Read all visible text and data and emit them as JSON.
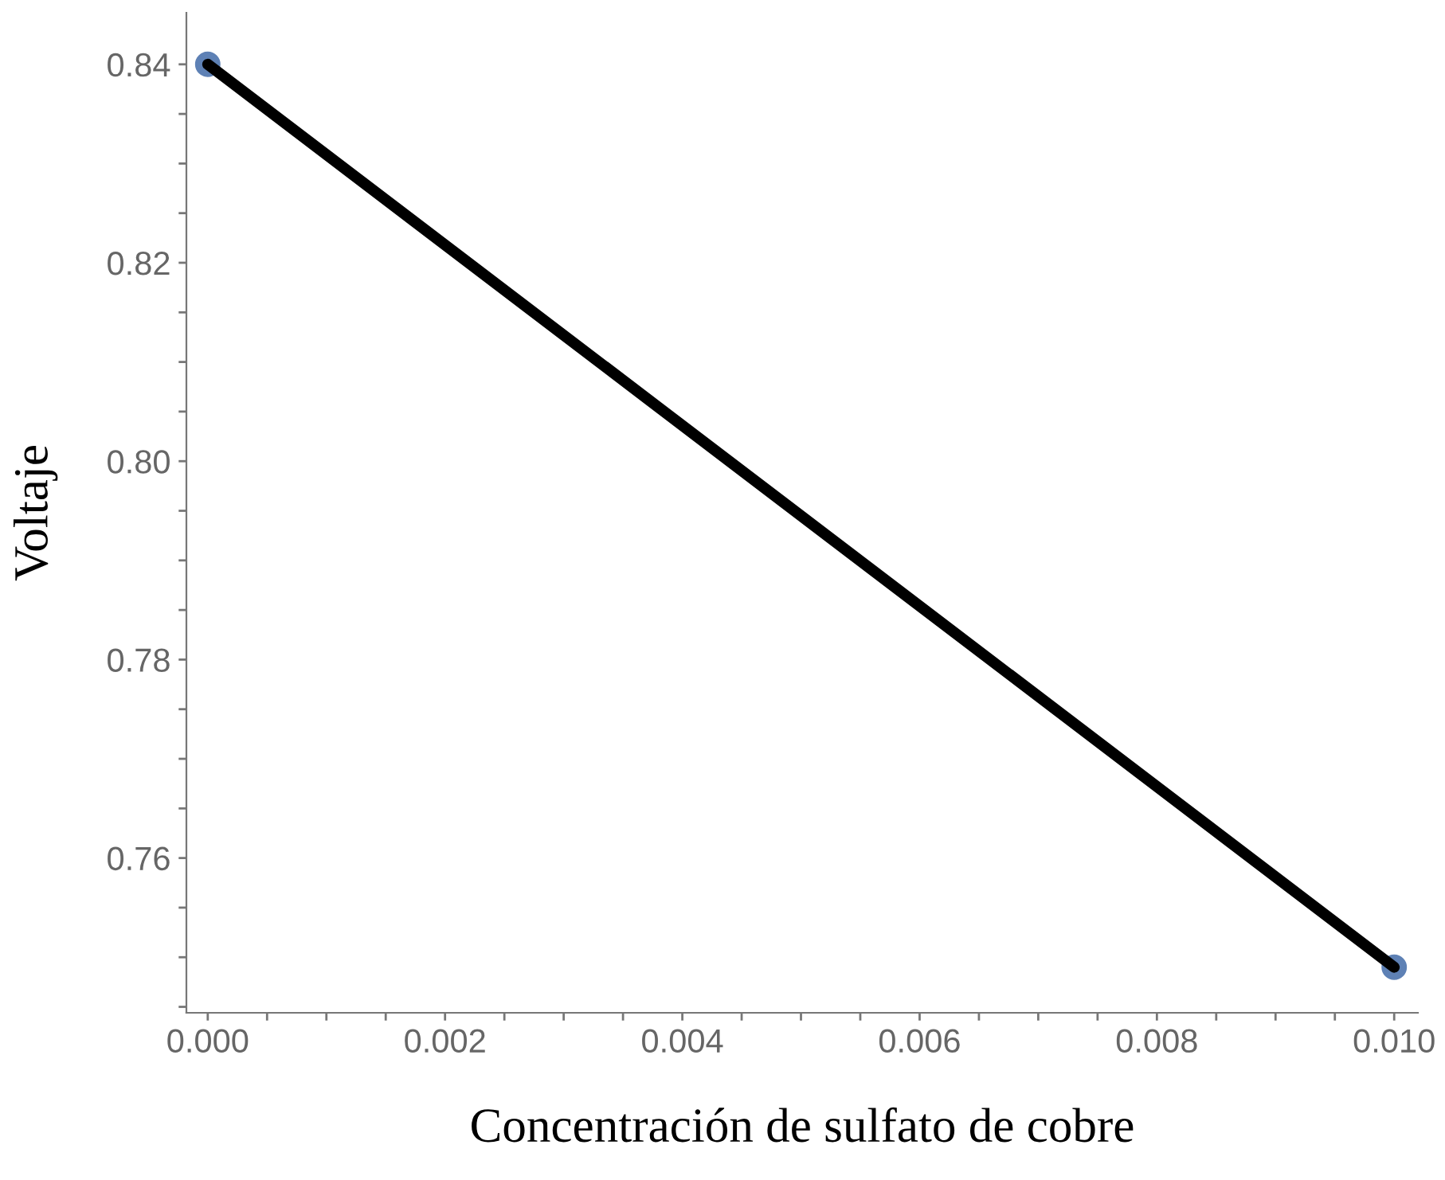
{
  "chart_data": {
    "type": "scatter",
    "xlabel": "Concentración de sulfato de cobre",
    "ylabel": "Voltaje",
    "x": [
      0,
      0.01
    ],
    "series": [
      {
        "color": "#5e81b5",
        "values": [
          0.84,
          0.749
        ],
        "marker": "circle"
      },
      {
        "type": "line",
        "color": "#000000",
        "values": [
          0.84,
          0.749
        ],
        "marker": "none",
        "line_style": "solid"
      }
    ],
    "xlim": [
      -0.00018,
      0.0102
    ],
    "ylim": [
      0.7444,
      0.8452
    ],
    "xticks": [
      {
        "value": 0,
        "label": "0.000"
      },
      {
        "value": 0.0005,
        "label": null
      },
      {
        "value": 0.001,
        "label": null
      },
      {
        "value": 0.0015,
        "label": null
      },
      {
        "value": 0.002,
        "label": "0.002"
      },
      {
        "value": 0.0025,
        "label": null
      },
      {
        "value": 0.003,
        "label": null
      },
      {
        "value": 0.0035,
        "label": null
      },
      {
        "value": 0.004,
        "label": "0.004"
      },
      {
        "value": 0.0045,
        "label": null
      },
      {
        "value": 0.005,
        "label": null
      },
      {
        "value": 0.0055,
        "label": null
      },
      {
        "value": 0.006,
        "label": "0.006"
      },
      {
        "value": 0.0065,
        "label": null
      },
      {
        "value": 0.007,
        "label": null
      },
      {
        "value": 0.0075,
        "label": null
      },
      {
        "value": 0.008,
        "label": "0.008"
      },
      {
        "value": 0.0085,
        "label": null
      },
      {
        "value": 0.009,
        "label": null
      },
      {
        "value": 0.0095,
        "label": null
      },
      {
        "value": 0.01,
        "label": "0.010"
      }
    ],
    "yticks": [
      {
        "value": 0.745,
        "label": null
      },
      {
        "value": 0.75,
        "label": null
      },
      {
        "value": 0.755,
        "label": null
      },
      {
        "value": 0.76,
        "label": "0.76"
      },
      {
        "value": 0.765,
        "label": null
      },
      {
        "value": 0.77,
        "label": null
      },
      {
        "value": 0.775,
        "label": null
      },
      {
        "value": 0.78,
        "label": "0.78"
      },
      {
        "value": 0.785,
        "label": null
      },
      {
        "value": 0.79,
        "label": null
      },
      {
        "value": 0.795,
        "label": null
      },
      {
        "value": 0.8,
        "label": "0.80"
      },
      {
        "value": 0.805,
        "label": null
      },
      {
        "value": 0.81,
        "label": null
      },
      {
        "value": 0.815,
        "label": null
      },
      {
        "value": 0.82,
        "label": "0.82"
      },
      {
        "value": 0.825,
        "label": null
      },
      {
        "value": 0.83,
        "label": null
      },
      {
        "value": 0.835,
        "label": null
      },
      {
        "value": 0.84,
        "label": "0.84"
      }
    ],
    "grid": false,
    "legend": false
  }
}
